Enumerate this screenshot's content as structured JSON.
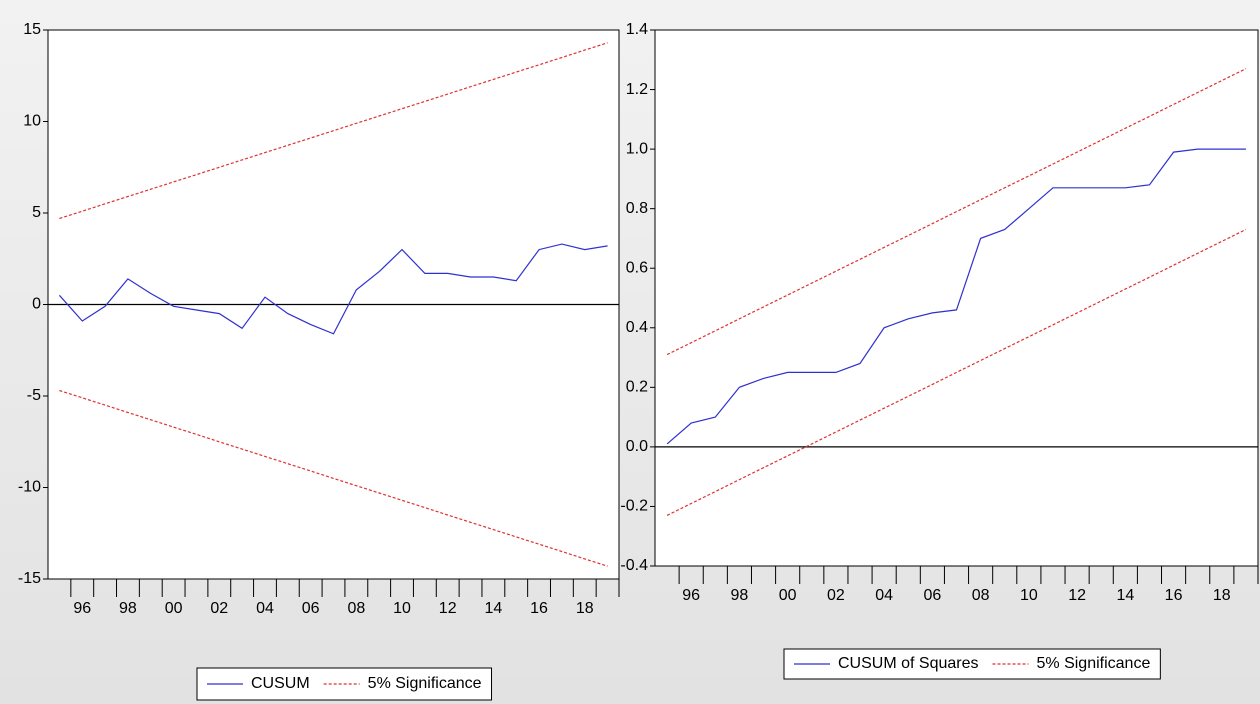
{
  "chart_data": [
    {
      "type": "line",
      "categories": [
        null,
        "96",
        null,
        "98",
        null,
        "00",
        null,
        "02",
        null,
        "04",
        null,
        "06",
        null,
        "08",
        null,
        "10",
        null,
        "12",
        null,
        "14",
        null,
        "16",
        null,
        "18",
        null
      ],
      "series": [
        {
          "name": "CUSUM",
          "color": "#3030d0",
          "values": [
            0.5,
            -0.9,
            -0.1,
            1.4,
            0.6,
            -0.1,
            -0.3,
            -0.5,
            -1.3,
            0.4,
            -0.5,
            -1.1,
            -1.6,
            0.8,
            1.8,
            3.0,
            1.7,
            1.7,
            1.5,
            1.5,
            1.3,
            3.0,
            3.3,
            3.0,
            3.2
          ]
        },
        {
          "name": "5% Significance",
          "color": "#e03030",
          "dashed": true,
          "values": [
            4.7,
            5.1,
            5.5,
            5.9,
            6.3,
            6.7,
            7.1,
            7.5,
            7.9,
            8.3,
            8.7,
            9.1,
            9.5,
            9.9,
            10.3,
            10.7,
            11.1,
            11.5,
            11.9,
            12.3,
            12.7,
            13.1,
            13.5,
            13.9,
            14.3
          ],
          "lower": [
            -4.7,
            -5.1,
            -5.5,
            -5.9,
            -6.3,
            -6.7,
            -7.1,
            -7.5,
            -7.9,
            -8.3,
            -8.7,
            -9.1,
            -9.5,
            -9.9,
            -10.3,
            -10.7,
            -11.1,
            -11.5,
            -11.9,
            -12.3,
            -12.7,
            -13.1,
            -13.5,
            -13.9,
            -14.3
          ]
        }
      ],
      "ylim": [
        -15,
        15
      ],
      "yticks": [
        -15,
        -10,
        -5,
        0,
        5,
        10,
        15
      ],
      "legend": "bottom"
    },
    {
      "type": "line",
      "categories": [
        null,
        "96",
        null,
        "98",
        null,
        "00",
        null,
        "02",
        null,
        "04",
        null,
        "06",
        null,
        "08",
        null,
        "10",
        null,
        "12",
        null,
        "14",
        null,
        "16",
        null,
        "18",
        null
      ],
      "series": [
        {
          "name": "CUSUM of Squares",
          "color": "#3030d0",
          "values": [
            0.01,
            0.08,
            0.1,
            0.2,
            0.23,
            0.25,
            0.25,
            0.25,
            0.28,
            0.4,
            0.43,
            0.45,
            0.46,
            0.7,
            0.73,
            0.8,
            0.87,
            0.87,
            0.87,
            0.87,
            0.88,
            0.99,
            1.0,
            1.0,
            1.0
          ]
        },
        {
          "name": "5% Significance",
          "color": "#e03030",
          "dashed": true,
          "values": [
            0.31,
            0.35,
            0.39,
            0.43,
            0.47,
            0.51,
            0.55,
            0.59,
            0.63,
            0.67,
            0.71,
            0.75,
            0.79,
            0.83,
            0.87,
            0.91,
            0.95,
            0.99,
            1.03,
            1.07,
            1.11,
            1.15,
            1.19,
            1.23,
            1.27
          ],
          "lower": [
            -0.23,
            -0.19,
            -0.15,
            -0.11,
            -0.07,
            -0.03,
            0.01,
            0.05,
            0.09,
            0.13,
            0.17,
            0.21,
            0.25,
            0.29,
            0.33,
            0.37,
            0.41,
            0.45,
            0.49,
            0.53,
            0.57,
            0.61,
            0.65,
            0.69,
            0.73
          ]
        }
      ],
      "ylim": [
        -0.4,
        1.4
      ],
      "yticks": [
        -0.4,
        -0.2,
        {
          "value": 0,
          "label": "0.0"
        },
        0.2,
        0.4,
        0.6,
        0.8,
        {
          "value": 1,
          "label": "1.0"
        },
        1.2,
        1.4
      ],
      "legend": "bottom"
    }
  ]
}
